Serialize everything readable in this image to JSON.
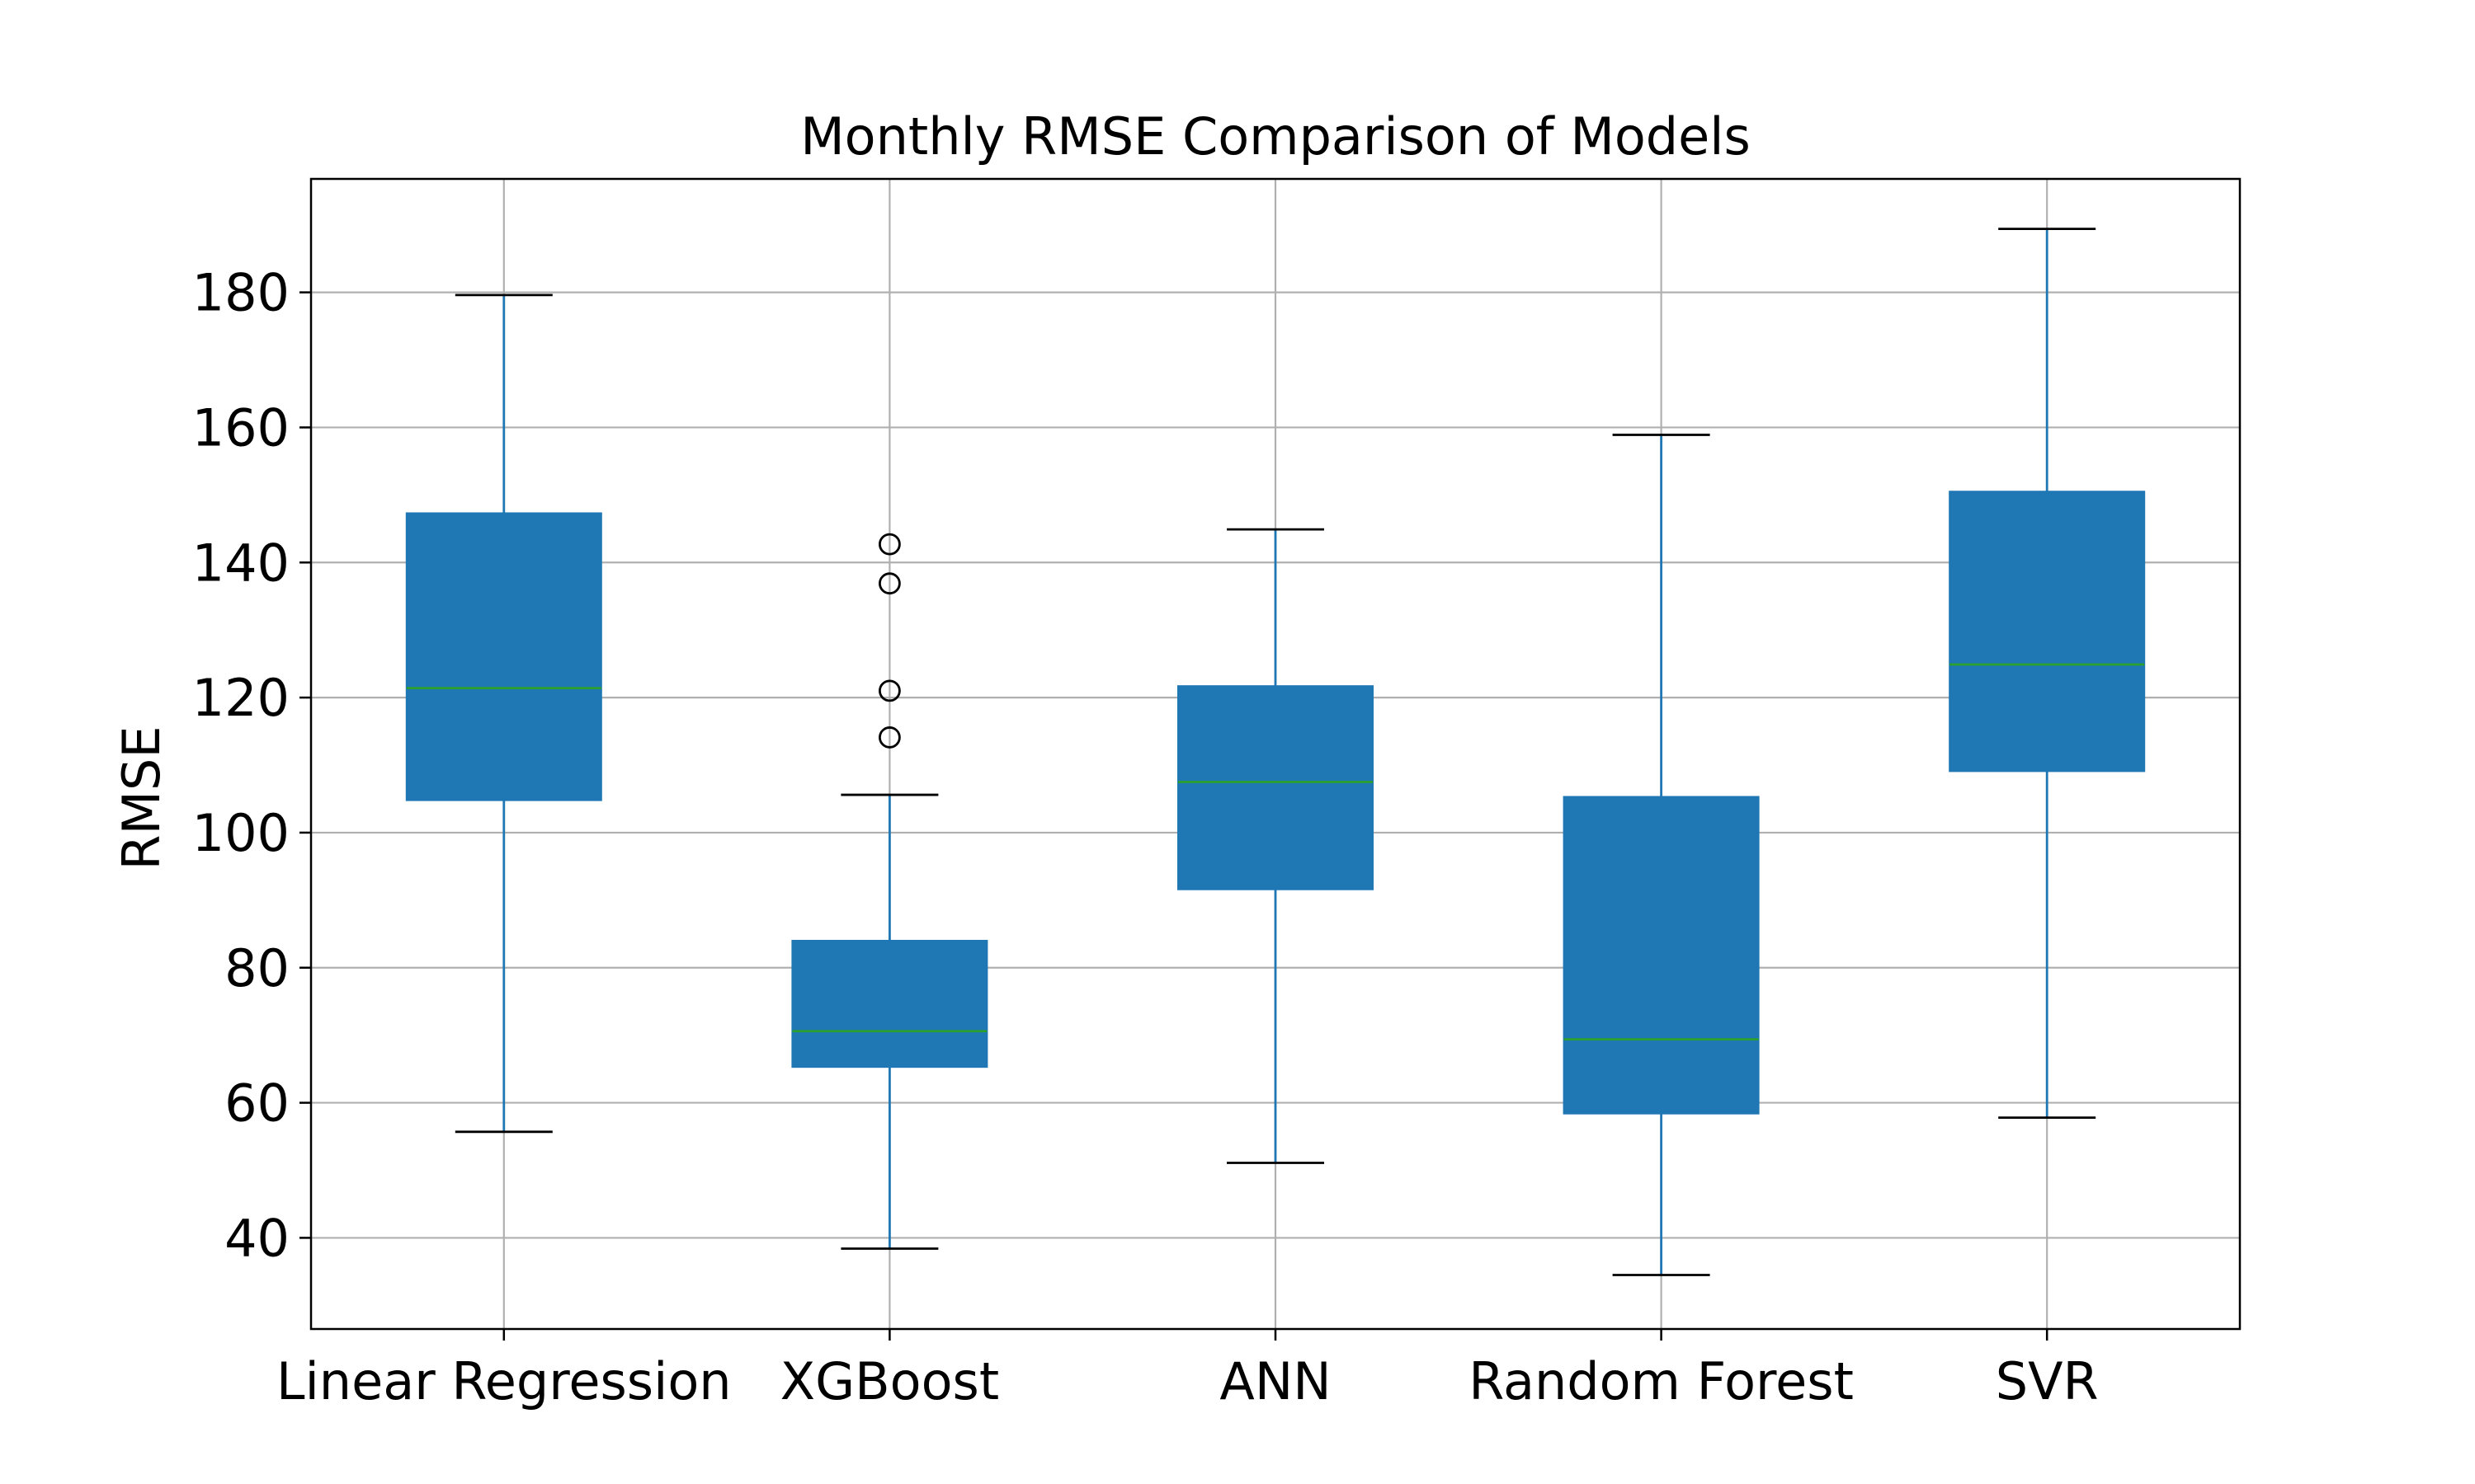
{
  "chart_data": {
    "type": "box",
    "title": "Monthly RMSE Comparison of Models",
    "xlabel": "",
    "ylabel": "RMSE",
    "categories": [
      "Linear Regression",
      "XGBoost",
      "ANN",
      "Random Forest",
      "SVR"
    ],
    "boxes": [
      {
        "category": "Linear Regression",
        "whisker_low": 55.7,
        "q1": 104.8,
        "median": 121.4,
        "q3": 147.3,
        "whisker_high": 179.6,
        "outliers": []
      },
      {
        "category": "XGBoost",
        "whisker_low": 38.4,
        "q1": 65.3,
        "median": 70.6,
        "q3": 84.0,
        "whisker_high": 105.6,
        "outliers": [
          114.1,
          121.0,
          136.9,
          142.7
        ]
      },
      {
        "category": "ANN",
        "whisker_low": 51.1,
        "q1": 91.6,
        "median": 107.5,
        "q3": 121.7,
        "whisker_high": 144.9,
        "outliers": []
      },
      {
        "category": "Random Forest",
        "whisker_low": 34.5,
        "q1": 58.4,
        "median": 69.4,
        "q3": 105.3,
        "whisker_high": 158.9,
        "outliers": []
      },
      {
        "category": "SVR",
        "whisker_low": 57.8,
        "q1": 109.1,
        "median": 124.9,
        "q3": 150.5,
        "whisker_high": 189.4,
        "outliers": []
      }
    ],
    "yticks": [
      40,
      60,
      80,
      100,
      120,
      140,
      160,
      180
    ],
    "ylim": [
      26.5,
      196.8
    ],
    "grid": true,
    "legend": "none",
    "colors": {
      "box": "#1f77b4",
      "median": "#2ca02c",
      "whisker": "#1f77b4",
      "cap": "#000000"
    }
  }
}
